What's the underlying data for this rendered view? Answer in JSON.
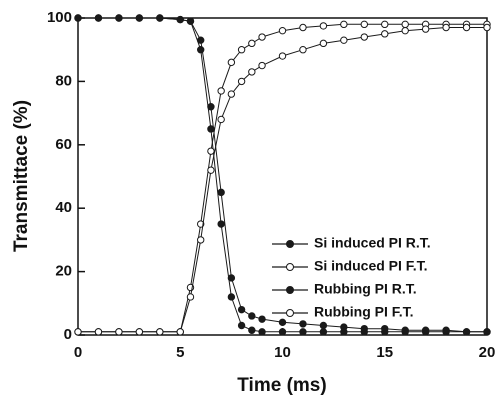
{
  "chart_data": {
    "type": "line",
    "x_label": "Time (ms)",
    "y_label": "Transmittace (%)",
    "x": [
      0,
      1,
      2,
      3,
      4,
      5,
      5.5,
      6,
      6.5,
      7,
      7.5,
      8,
      8.5,
      9,
      10,
      11,
      12,
      13,
      14,
      15,
      16,
      17,
      18,
      19,
      20
    ],
    "series": [
      {
        "name": "Si induced PI R.T.",
        "color": "#1a1a1a",
        "marker": "filled",
        "values": [
          100,
          100,
          100,
          100,
          100,
          99.5,
          99,
          90,
          65,
          35,
          12,
          3,
          1.5,
          1,
          1,
          1,
          1,
          1,
          1,
          1,
          1,
          1,
          1,
          1,
          1
        ]
      },
      {
        "name": "Si induced PI F.T.",
        "color": "#1a1a1a",
        "marker": "open",
        "values": [
          1,
          1,
          1,
          1,
          1,
          1,
          15,
          35,
          58,
          77,
          86,
          90,
          92,
          94,
          96,
          97,
          97.5,
          98,
          98,
          98,
          98,
          98,
          98,
          98,
          98
        ]
      },
      {
        "name": "Rubbing PI R.T.",
        "color": "#1a1a1a",
        "marker": "filled",
        "values": [
          100,
          100,
          100,
          100,
          100,
          99.5,
          99,
          93,
          72,
          45,
          18,
          8,
          6,
          5,
          4,
          3.5,
          3,
          2.5,
          2,
          2,
          1.5,
          1.5,
          1.5,
          1,
          1
        ]
      },
      {
        "name": "Rubbing PI F.T.",
        "color": "#1a1a1a",
        "marker": "open",
        "values": [
          1,
          1,
          1,
          1,
          1,
          1,
          12,
          30,
          52,
          68,
          76,
          80,
          83,
          85,
          88,
          90,
          92,
          93,
          94,
          95,
          96,
          96.5,
          97,
          97,
          97
        ]
      }
    ],
    "xlim": [
      0,
      20
    ],
    "ylim": [
      0,
      100
    ],
    "xticks": [
      0,
      5,
      10,
      15,
      20
    ],
    "yticks": [
      0,
      20,
      40,
      60,
      80,
      100
    ],
    "legend": "lower right",
    "grid": false
  }
}
